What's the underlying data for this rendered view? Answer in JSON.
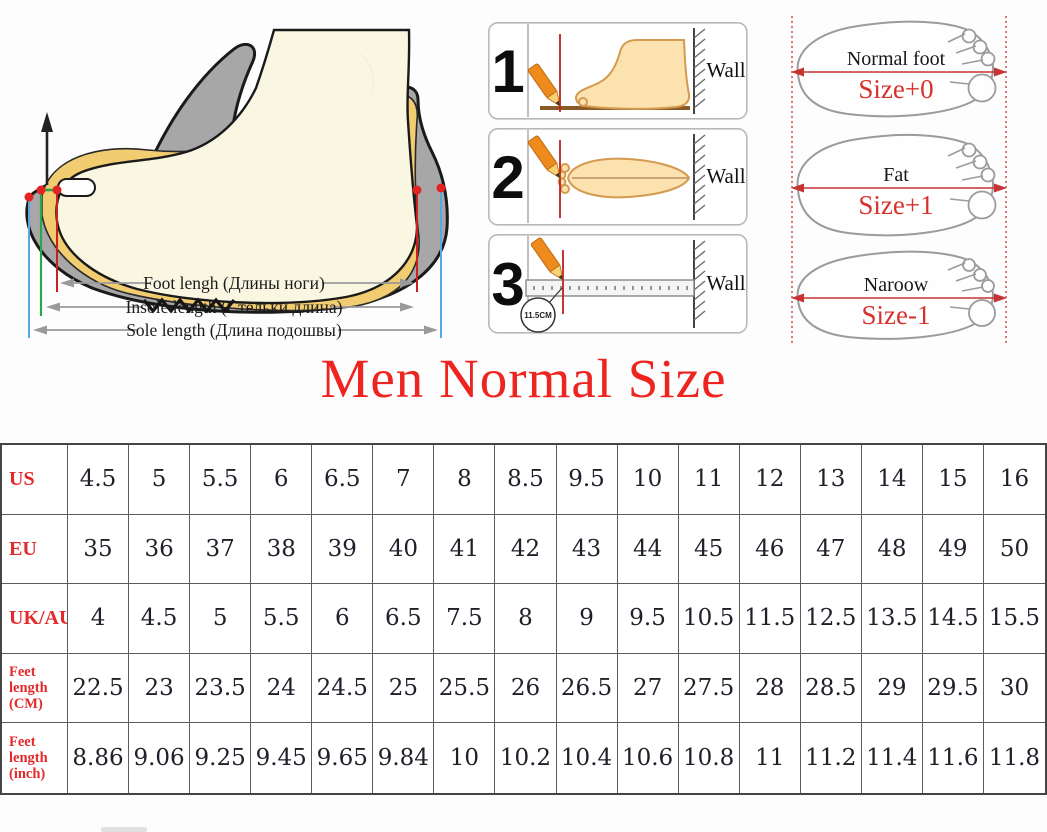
{
  "title": "Men Normal Size",
  "measure_labels": [
    "Foot lengh (Длины ноги)",
    "Insole length (Стельки длина)",
    "Sole length (Длина подошвы)"
  ],
  "steps": [
    {
      "number": "1",
      "wall_label": "Wall"
    },
    {
      "number": "2",
      "wall_label": "Wall"
    },
    {
      "number": "3",
      "wall_label": "Wall",
      "ruler_note": "11.5CM"
    }
  ],
  "foot_types": [
    {
      "name": "Normal foot",
      "size": "Size+0"
    },
    {
      "name": "Fat",
      "size": "Size+1"
    },
    {
      "name": "Naroow",
      "size": "Size-1"
    }
  ],
  "size_table": {
    "rows": [
      {
        "header": "US",
        "values": [
          "4.5",
          "5",
          "5.5",
          "6",
          "6.5",
          "7",
          "8",
          "8.5",
          "9.5",
          "10",
          "11",
          "12",
          "13",
          "14",
          "15",
          "16"
        ]
      },
      {
        "header": "EU",
        "values": [
          "35",
          "36",
          "37",
          "38",
          "39",
          "40",
          "41",
          "42",
          "43",
          "44",
          "45",
          "46",
          "47",
          "48",
          "49",
          "50"
        ]
      },
      {
        "header": "UK/AU",
        "values": [
          "4",
          "4.5",
          "5",
          "5.5",
          "6",
          "6.5",
          "7.5",
          "8",
          "9",
          "9.5",
          "10.5",
          "11.5",
          "12.5",
          "13.5",
          "14.5",
          "15.5"
        ]
      },
      {
        "header": "Feet length (CM)",
        "values": [
          "22.5",
          "23",
          "23.5",
          "24",
          "24.5",
          "25",
          "25.5",
          "26",
          "26.5",
          "27",
          "27.5",
          "28",
          "28.5",
          "29",
          "29.5",
          "30"
        ]
      },
      {
        "header": "Feet length (inch)",
        "values": [
          "8.86",
          "9.06",
          "9.25",
          "9.45",
          "9.65",
          "9.84",
          "10",
          "10.2",
          "10.4",
          "10.6",
          "10.8",
          "11",
          "11.2",
          "11.4",
          "11.6",
          "11.8"
        ]
      }
    ]
  },
  "colors": {
    "title_red": "#ee2420",
    "header_red": "#e32a2c",
    "size_red": "#d8302b",
    "dash_red": "#cf4a4a",
    "table_border": "#5c5c5c",
    "value_ink": "#20202a",
    "foot_length_line": "#c92020",
    "insole_length_line": "#2da44e",
    "sole_length_line": "#58a8dc"
  }
}
